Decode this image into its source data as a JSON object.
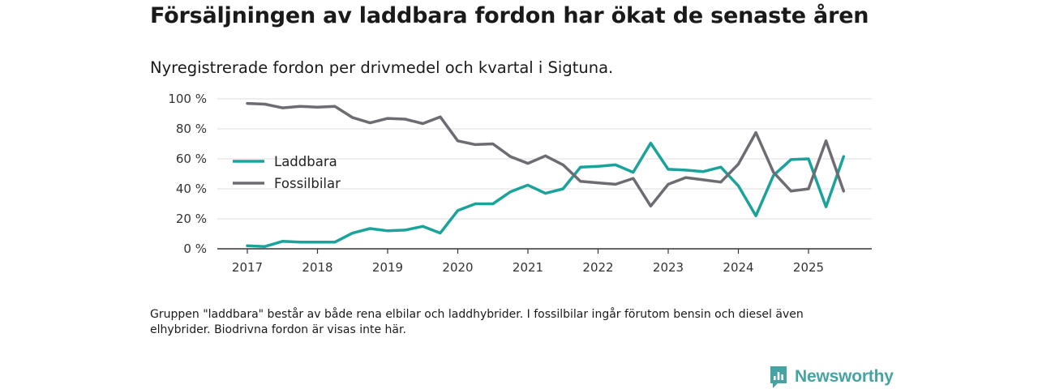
{
  "title": "Försäljningen av laddbara fordon har ökat de senaste åren",
  "subtitle": "Nyregistrerade fordon per drivmedel och kvartal i Sigtuna.",
  "note": "Gruppen \"laddbara\" består av både rena elbilar och laddhybrider. I fossilbilar ingår förutom bensin och diesel även elhybrider. Biodrivna fordon är visas inte här.",
  "brand": "Newsworthy",
  "colors": {
    "laddbara": "#1aa39a",
    "fossil": "#6e6b72",
    "grid": "#dcdcdc",
    "axis": "#333333"
  },
  "chart_data": {
    "type": "line",
    "title": "Försäljningen av laddbara fordon har ökat de senaste åren",
    "subtitle": "Nyregistrerade fordon per drivmedel och kvartal i Sigtuna.",
    "xlabel": "",
    "ylabel": "",
    "ylim": [
      0,
      100
    ],
    "yticks": [
      0,
      20,
      40,
      60,
      80,
      100
    ],
    "ytick_labels": [
      "0 %",
      "20 %",
      "40 %",
      "60 %",
      "80 %",
      "100 %"
    ],
    "xticks": [
      "2017",
      "2018",
      "2019",
      "2020",
      "2021",
      "2022",
      "2023",
      "2024",
      "2025"
    ],
    "legend_position": "left-middle",
    "x": [
      "2017 Q1",
      "2017 Q2",
      "2017 Q3",
      "2017 Q4",
      "2018 Q1",
      "2018 Q2",
      "2018 Q3",
      "2018 Q4",
      "2019 Q1",
      "2019 Q2",
      "2019 Q3",
      "2019 Q4",
      "2020 Q1",
      "2020 Q2",
      "2020 Q3",
      "2020 Q4",
      "2021 Q1",
      "2021 Q2",
      "2021 Q3",
      "2021 Q4",
      "2022 Q1",
      "2022 Q2",
      "2022 Q3",
      "2022 Q4",
      "2023 Q1",
      "2023 Q2",
      "2023 Q3",
      "2023 Q4",
      "2024 Q1",
      "2024 Q2",
      "2024 Q3",
      "2024 Q4",
      "2025 Q1",
      "2025 Q2",
      "2025 Q3"
    ],
    "series": [
      {
        "name": "Laddbara",
        "key": "laddbara",
        "values": [
          2,
          1.5,
          5,
          4.5,
          4.5,
          4.5,
          10.5,
          13.5,
          12,
          12.5,
          15,
          10.5,
          25.5,
          30,
          30,
          38,
          42.5,
          37,
          40,
          54.5,
          55,
          56,
          51,
          70.5,
          53,
          52.5,
          51.5,
          54.5,
          42,
          22,
          49,
          59.5,
          60,
          28,
          61.5
        ]
      },
      {
        "name": "Fossilbilar",
        "key": "fossil",
        "values": [
          97,
          96.5,
          94,
          95,
          94.5,
          95,
          87.5,
          84,
          87,
          86.5,
          83.5,
          88,
          72,
          69.5,
          70,
          61.5,
          57,
          62,
          56,
          45,
          44,
          43,
          47,
          28.5,
          43,
          47.5,
          46,
          44.5,
          56.5,
          77.5,
          51,
          38.5,
          40,
          72,
          38.5
        ]
      }
    ]
  }
}
